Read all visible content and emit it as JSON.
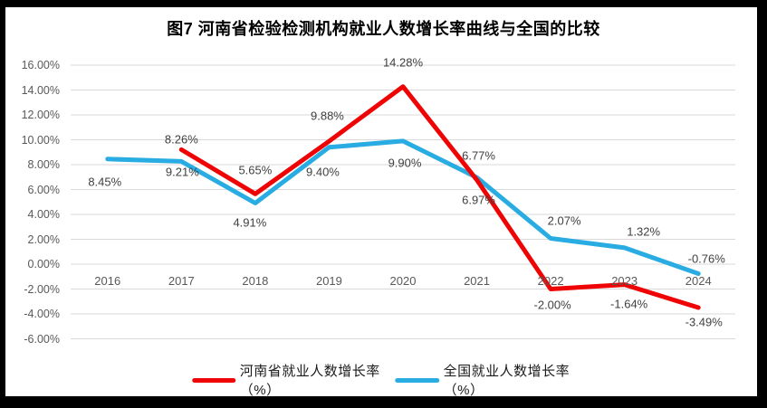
{
  "title": "图7  河南省检验检测机构就业人数增长率曲线与全国的比较",
  "colors": {
    "henan_red": "#ee0404",
    "national_blue": "#29ace2",
    "gridline": "#d9d9d9",
    "frame": "#000000",
    "axis_text": "#595959",
    "label_text": "#404040"
  },
  "chart_data": {
    "type": "line",
    "title": "图7  河南省检验检测机构就业人数增长率曲线与全国的比较",
    "categories": [
      "2016",
      "2017",
      "2018",
      "2019",
      "2020",
      "2021",
      "2022",
      "2023",
      "2024"
    ],
    "series": [
      {
        "name": "河南省就业人数增长率（%）",
        "color": "#ee0404",
        "values": [
          null,
          9.21,
          5.65,
          9.88,
          14.28,
          6.77,
          -2.0,
          -1.64,
          -3.49
        ],
        "labels": [
          "",
          "9.21%",
          "5.65%",
          "9.88%",
          "14.28%",
          "6.77%",
          "-2.00%",
          "-1.64%",
          "-3.49%"
        ]
      },
      {
        "name": "全国就业人数增长率（%）",
        "color": "#29ace2",
        "values": [
          8.45,
          8.26,
          4.91,
          9.4,
          9.9,
          6.97,
          2.07,
          1.32,
          -0.76
        ],
        "labels": [
          "8.45%",
          "8.26%",
          "4.91%",
          "9.40%",
          "9.90%",
          "6.97%",
          "2.07%",
          "1.32%",
          "-0.76%"
        ]
      }
    ],
    "y_axis": {
      "min": -6,
      "max": 16,
      "step": 2,
      "tick_labels": [
        "16.00%",
        "14.00%",
        "12.00%",
        "10.00%",
        "8.00%",
        "6.00%",
        "4.00%",
        "2.00%",
        "0.00%",
        "-2.00%",
        "-4.00%",
        "-6.00%"
      ]
    },
    "x_axis": {
      "tick_labels": [
        "2016",
        "2017",
        "2018",
        "2019",
        "2020",
        "2021",
        "2022",
        "2023",
        "2024"
      ]
    },
    "grid": true,
    "legend_position": "bottom"
  }
}
